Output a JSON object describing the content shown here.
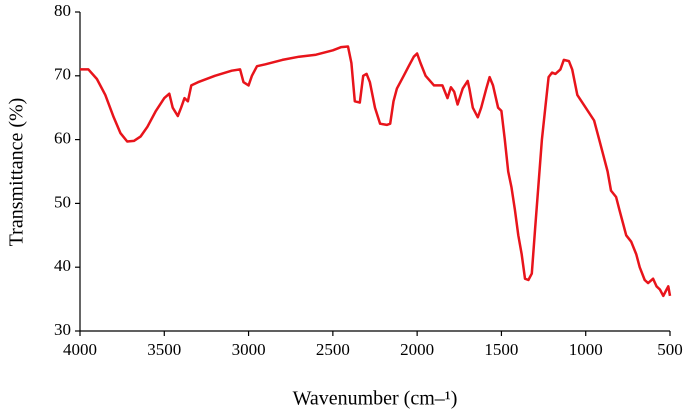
{
  "chart_data": {
    "type": "line",
    "xlabel": "Wavenumber (cm–¹)",
    "ylabel": "Transmittance (%)",
    "x": [
      4000,
      3950,
      3900,
      3850,
      3800,
      3760,
      3720,
      3680,
      3640,
      3600,
      3550,
      3500,
      3470,
      3450,
      3420,
      3400,
      3380,
      3360,
      3340,
      3300,
      3200,
      3100,
      3050,
      3030,
      3000,
      2980,
      2950,
      2900,
      2800,
      2700,
      2600,
      2500,
      2450,
      2410,
      2390,
      2370,
      2340,
      2320,
      2300,
      2280,
      2250,
      2220,
      2180,
      2160,
      2140,
      2120,
      2080,
      2050,
      2020,
      2000,
      1980,
      1950,
      1900,
      1850,
      1820,
      1800,
      1780,
      1760,
      1730,
      1700,
      1690,
      1670,
      1640,
      1620,
      1590,
      1570,
      1550,
      1520,
      1500,
      1480,
      1460,
      1440,
      1420,
      1400,
      1380,
      1360,
      1340,
      1320,
      1300,
      1280,
      1260,
      1240,
      1220,
      1200,
      1180,
      1150,
      1130,
      1100,
      1080,
      1050,
      1000,
      950,
      920,
      900,
      870,
      850,
      820,
      800,
      780,
      760,
      730,
      700,
      680,
      650,
      630,
      600,
      580,
      560,
      540,
      520,
      510,
      500
    ],
    "series": [
      {
        "name": "Transmittance",
        "color": "#e8141b",
        "values": [
          71,
          71,
          69.5,
          67,
          63.5,
          61,
          59.7,
          59.8,
          60.5,
          62,
          64.5,
          66.5,
          67.2,
          65,
          63.7,
          65,
          66.5,
          66,
          68.5,
          69,
          70,
          70.8,
          71,
          69,
          68.5,
          70,
          71.5,
          71.8,
          72.5,
          73,
          73.3,
          74,
          74.5,
          74.6,
          72,
          66,
          65.8,
          70,
          70.3,
          69,
          65,
          62.5,
          62.3,
          62.5,
          66,
          68,
          70,
          71.5,
          73,
          73.5,
          72,
          70,
          68.5,
          68.5,
          66.5,
          68.2,
          67.5,
          65.5,
          68,
          69.2,
          68,
          65,
          63.5,
          65,
          68,
          69.8,
          68.5,
          65,
          64.5,
          60,
          55,
          52.5,
          49,
          45,
          42,
          38.2,
          38,
          39,
          46,
          53,
          60,
          65,
          69.8,
          70.5,
          70.3,
          71,
          72.5,
          72.3,
          71,
          67,
          65,
          63,
          60,
          58,
          55,
          52,
          51,
          49,
          47,
          45,
          44,
          42,
          40,
          38,
          37.5,
          38.2,
          37,
          36.5,
          35.5,
          36.5,
          37,
          35.5
        ]
      }
    ],
    "xlim": [
      4000,
      500
    ],
    "xticks": [
      4000,
      3500,
      3000,
      2500,
      2000,
      1500,
      1000,
      500
    ],
    "ylim": [
      30,
      80
    ],
    "yticks": [
      30,
      40,
      50,
      60,
      70,
      80
    ]
  }
}
